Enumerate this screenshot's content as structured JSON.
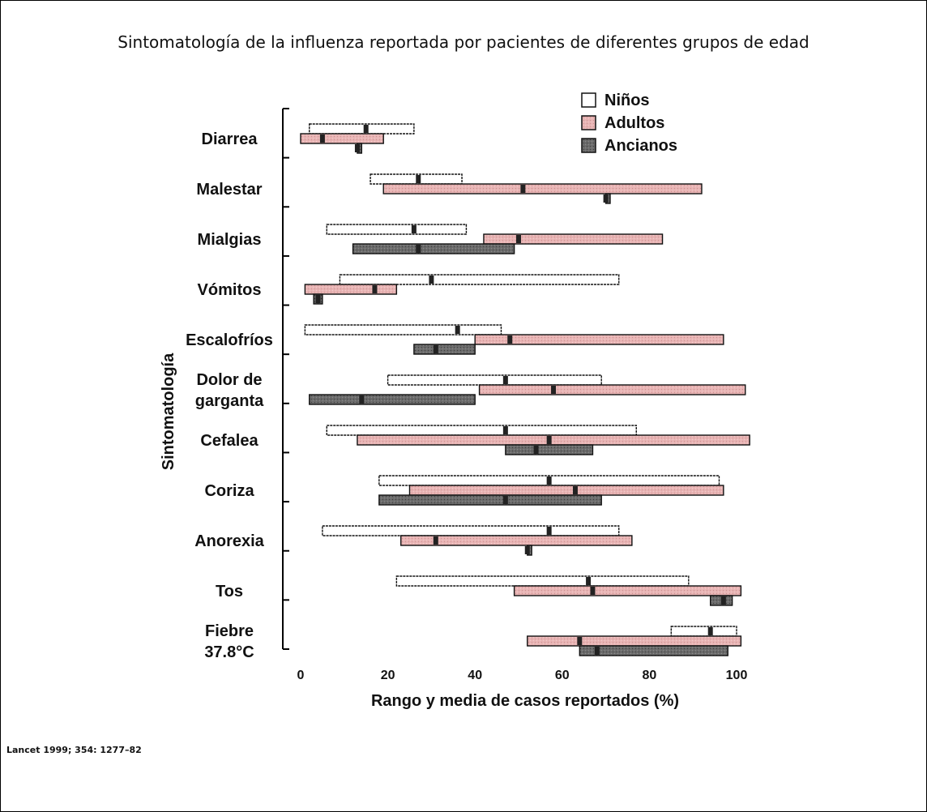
{
  "page": {
    "title": "Sintomatología de la influenza reportada por pacientes de diferentes grupos de edad",
    "citation": "Lancet 1999; 354: 1277–82"
  },
  "chart_data": {
    "type": "bar",
    "subtype": "horizontal range bars with mean marker",
    "xlabel": "Rango y media de casos reportados (%)",
    "ylabel": "Sintomatología",
    "xlim": [
      0,
      100
    ],
    "xticks": [
      "0",
      "20",
      "40",
      "60",
      "80",
      "100"
    ],
    "grid": false,
    "legend_position": "top-right",
    "categories": [
      "Diarrea",
      "Malestar",
      "Mialgias",
      "Vómitos",
      "Escalofríos",
      "Dolor de garganta",
      "Cefalea",
      "Coriza",
      "Anorexia",
      "Tos",
      "Fiebre 37.8°C"
    ],
    "category_display": [
      [
        "Diarrea"
      ],
      [
        "Malestar"
      ],
      [
        "Mialgias"
      ],
      [
        "Vómitos"
      ],
      [
        "Escalofríos"
      ],
      [
        "Dolor de",
        "garganta"
      ],
      [
        "Cefalea"
      ],
      [
        "Coriza"
      ],
      [
        "Anorexia"
      ],
      [
        "Tos"
      ],
      [
        "Fiebre",
        "37.8°C"
      ]
    ],
    "series": [
      {
        "name": "Niños",
        "color": "#ffffff",
        "ranges": [
          [
            2,
            26
          ],
          [
            16,
            37
          ],
          [
            6,
            38
          ],
          [
            9,
            73
          ],
          [
            1,
            46
          ],
          [
            20,
            69
          ],
          [
            6,
            77
          ],
          [
            18,
            96
          ],
          [
            5,
            73
          ],
          [
            22,
            89
          ],
          [
            85,
            100
          ]
        ],
        "means": [
          15,
          27,
          26,
          30,
          36,
          47,
          47,
          57,
          57,
          66,
          94
        ]
      },
      {
        "name": "Adultos",
        "color": "#e8b4b4",
        "ranges": [
          [
            0,
            19
          ],
          [
            19,
            92
          ],
          [
            42,
            83
          ],
          [
            1,
            22
          ],
          [
            40,
            97
          ],
          [
            41,
            102
          ],
          [
            13,
            103
          ],
          [
            25,
            97
          ],
          [
            23,
            76
          ],
          [
            49,
            101
          ],
          [
            52,
            101
          ]
        ],
        "means": [
          5,
          51,
          50,
          17,
          48,
          58,
          57,
          63,
          31,
          67,
          64
        ]
      },
      {
        "name": "Ancianos",
        "color": "#6b6b6b",
        "ranges": [
          [
            13,
            14
          ],
          [
            70,
            71
          ],
          [
            12,
            49
          ],
          [
            3,
            5
          ],
          [
            26,
            40
          ],
          [
            2,
            40
          ],
          [
            47,
            67
          ],
          [
            18,
            69
          ],
          [
            52,
            53
          ],
          [
            94,
            99
          ],
          [
            64,
            98
          ]
        ],
        "means": [
          13,
          70,
          27,
          4,
          31,
          14,
          54,
          47,
          52,
          97,
          68
        ]
      }
    ]
  }
}
